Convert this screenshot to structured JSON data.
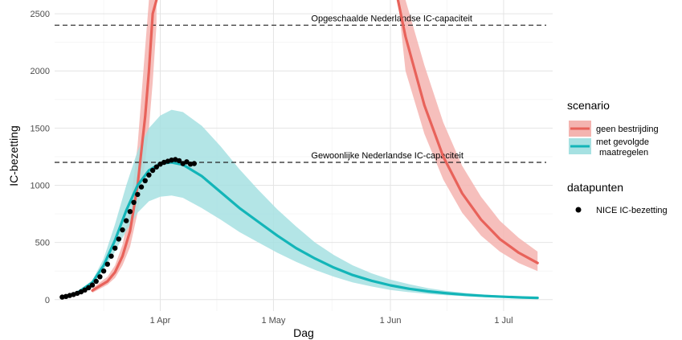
{
  "chart_data": {
    "type": "line",
    "xlabel": "Dag",
    "ylabel": "IC-bezetting",
    "xlim": [
      "2020-03-04",
      "2020-07-14"
    ],
    "ylim": [
      -100,
      2620
    ],
    "y_ticks": [
      0,
      500,
      1000,
      1500,
      2000,
      2500
    ],
    "x_ticks": [
      {
        "date": "2020-04-01",
        "label": "1 Apr"
      },
      {
        "date": "2020-05-01",
        "label": "1 May"
      },
      {
        "date": "2020-06-01",
        "label": "1 Jun"
      },
      {
        "date": "2020-07-01",
        "label": "1 Jul"
      }
    ],
    "grid": true,
    "reference_lines": [
      {
        "y": 2400,
        "label": "Opgeschaalde Nederlandse IC-capaciteit"
      },
      {
        "y": 1200,
        "label": "Gewoonlijke Nederlandse IC-capaciteit"
      }
    ],
    "legend_position": "right",
    "legend": {
      "scenario_title": "scenario",
      "scenario_items": [
        {
          "label": "geen bestrijding",
          "color": "#e8625a",
          "band_color": "#f4b4b0"
        },
        {
          "label": "met gevolgde maatregelen",
          "label_lines": [
            "met gevolgde",
            "maatregelen"
          ],
          "color": "#13b5b8",
          "band_color": "#a6e1e2"
        }
      ],
      "points_title": "datapunten",
      "points_label": "NICE IC-bezetting"
    },
    "series": [
      {
        "name": "geen bestrijding",
        "color": "#e8625a",
        "segments": [
          [
            {
              "x": "2020-03-14",
              "y": 80,
              "lo": 60,
              "hi": 100
            },
            {
              "x": "2020-03-18",
              "y": 160,
              "lo": 130,
              "hi": 200
            },
            {
              "x": "2020-03-20",
              "y": 240,
              "lo": 190,
              "hi": 300
            },
            {
              "x": "2020-03-22",
              "y": 380,
              "lo": 300,
              "hi": 480
            },
            {
              "x": "2020-03-24",
              "y": 600,
              "lo": 460,
              "hi": 800
            },
            {
              "x": "2020-03-26",
              "y": 1000,
              "lo": 760,
              "hi": 1350
            },
            {
              "x": "2020-03-28",
              "y": 1600,
              "lo": 1200,
              "hi": 2200
            },
            {
              "x": "2020-03-29",
              "y": 2000,
              "lo": 1500,
              "hi": 2620
            },
            {
              "x": "2020-03-30",
              "y": 2500,
              "lo": 1900,
              "hi": 2620
            },
            {
              "x": "2020-03-31",
              "y": 2620,
              "lo": 2400,
              "hi": 2620
            }
          ],
          [
            {
              "x": "2020-06-03",
              "y": 2620,
              "lo": 2620,
              "hi": 2620
            },
            {
              "x": "2020-06-05",
              "y": 2300,
              "lo": 2000,
              "hi": 2620
            },
            {
              "x": "2020-06-10",
              "y": 1700,
              "lo": 1450,
              "hi": 2050
            },
            {
              "x": "2020-06-15",
              "y": 1250,
              "lo": 1050,
              "hi": 1550
            },
            {
              "x": "2020-06-20",
              "y": 930,
              "lo": 760,
              "hi": 1170
            },
            {
              "x": "2020-06-25",
              "y": 700,
              "lo": 560,
              "hi": 900
            },
            {
              "x": "2020-06-30",
              "y": 530,
              "lo": 420,
              "hi": 690
            },
            {
              "x": "2020-07-05",
              "y": 410,
              "lo": 320,
              "hi": 540
            },
            {
              "x": "2020-07-10",
              "y": 320,
              "lo": 250,
              "hi": 420
            }
          ]
        ]
      },
      {
        "name": "met gevolgde maatregelen",
        "color": "#13b5b8",
        "segments": [
          [
            {
              "x": "2020-03-06",
              "y": 20,
              "lo": 20,
              "hi": 20
            },
            {
              "x": "2020-03-10",
              "y": 60,
              "lo": 55,
              "hi": 65
            },
            {
              "x": "2020-03-14",
              "y": 150,
              "lo": 130,
              "hi": 170
            },
            {
              "x": "2020-03-17",
              "y": 300,
              "lo": 260,
              "hi": 360
            },
            {
              "x": "2020-03-20",
              "y": 520,
              "lo": 420,
              "hi": 660
            },
            {
              "x": "2020-03-23",
              "y": 780,
              "lo": 600,
              "hi": 1000
            },
            {
              "x": "2020-03-26",
              "y": 1000,
              "lo": 760,
              "hi": 1300
            },
            {
              "x": "2020-03-29",
              "y": 1130,
              "lo": 860,
              "hi": 1500
            },
            {
              "x": "2020-04-01",
              "y": 1190,
              "lo": 900,
              "hi": 1610
            },
            {
              "x": "2020-04-04",
              "y": 1200,
              "lo": 910,
              "hi": 1660
            },
            {
              "x": "2020-04-07",
              "y": 1180,
              "lo": 890,
              "hi": 1640
            },
            {
              "x": "2020-04-12",
              "y": 1080,
              "lo": 800,
              "hi": 1520
            },
            {
              "x": "2020-04-17",
              "y": 940,
              "lo": 700,
              "hi": 1340
            },
            {
              "x": "2020-04-22",
              "y": 800,
              "lo": 590,
              "hi": 1140
            },
            {
              "x": "2020-04-27",
              "y": 680,
              "lo": 500,
              "hi": 960
            },
            {
              "x": "2020-05-02",
              "y": 560,
              "lo": 410,
              "hi": 790
            },
            {
              "x": "2020-05-07",
              "y": 450,
              "lo": 330,
              "hi": 640
            },
            {
              "x": "2020-05-12",
              "y": 360,
              "lo": 260,
              "hi": 500
            },
            {
              "x": "2020-05-17",
              "y": 280,
              "lo": 200,
              "hi": 390
            },
            {
              "x": "2020-05-22",
              "y": 215,
              "lo": 150,
              "hi": 300
            },
            {
              "x": "2020-05-27",
              "y": 165,
              "lo": 115,
              "hi": 230
            },
            {
              "x": "2020-06-01",
              "y": 125,
              "lo": 85,
              "hi": 175
            },
            {
              "x": "2020-06-06",
              "y": 95,
              "lo": 65,
              "hi": 135
            },
            {
              "x": "2020-06-11",
              "y": 72,
              "lo": 50,
              "hi": 100
            },
            {
              "x": "2020-06-16",
              "y": 55,
              "lo": 38,
              "hi": 76
            },
            {
              "x": "2020-06-21",
              "y": 42,
              "lo": 29,
              "hi": 58
            },
            {
              "x": "2020-06-26",
              "y": 32,
              "lo": 22,
              "hi": 44
            },
            {
              "x": "2020-07-01",
              "y": 25,
              "lo": 17,
              "hi": 34
            },
            {
              "x": "2020-07-06",
              "y": 19,
              "lo": 13,
              "hi": 26
            },
            {
              "x": "2020-07-10",
              "y": 15,
              "lo": 10,
              "hi": 21
            }
          ]
        ]
      }
    ],
    "points": [
      {
        "x": "2020-03-06",
        "y": 22
      },
      {
        "x": "2020-03-07",
        "y": 28
      },
      {
        "x": "2020-03-08",
        "y": 36
      },
      {
        "x": "2020-03-09",
        "y": 45
      },
      {
        "x": "2020-03-10",
        "y": 55
      },
      {
        "x": "2020-03-11",
        "y": 68
      },
      {
        "x": "2020-03-12",
        "y": 84
      },
      {
        "x": "2020-03-13",
        "y": 104
      },
      {
        "x": "2020-03-14",
        "y": 128
      },
      {
        "x": "2020-03-15",
        "y": 160
      },
      {
        "x": "2020-03-16",
        "y": 200
      },
      {
        "x": "2020-03-17",
        "y": 250
      },
      {
        "x": "2020-03-18",
        "y": 310
      },
      {
        "x": "2020-03-19",
        "y": 380
      },
      {
        "x": "2020-03-20",
        "y": 450
      },
      {
        "x": "2020-03-21",
        "y": 530
      },
      {
        "x": "2020-03-22",
        "y": 610
      },
      {
        "x": "2020-03-23",
        "y": 690
      },
      {
        "x": "2020-03-24",
        "y": 770
      },
      {
        "x": "2020-03-25",
        "y": 850
      },
      {
        "x": "2020-03-26",
        "y": 920
      },
      {
        "x": "2020-03-27",
        "y": 985
      },
      {
        "x": "2020-03-28",
        "y": 1040
      },
      {
        "x": "2020-03-29",
        "y": 1090
      },
      {
        "x": "2020-03-30",
        "y": 1130
      },
      {
        "x": "2020-03-31",
        "y": 1160
      },
      {
        "x": "2020-04-01",
        "y": 1185
      },
      {
        "x": "2020-04-02",
        "y": 1200
      },
      {
        "x": "2020-04-03",
        "y": 1210
      },
      {
        "x": "2020-04-04",
        "y": 1220
      },
      {
        "x": "2020-04-05",
        "y": 1225
      },
      {
        "x": "2020-04-06",
        "y": 1215
      },
      {
        "x": "2020-04-07",
        "y": 1190
      },
      {
        "x": "2020-04-08",
        "y": 1205
      },
      {
        "x": "2020-04-09",
        "y": 1185
      },
      {
        "x": "2020-04-10",
        "y": 1190
      }
    ]
  }
}
